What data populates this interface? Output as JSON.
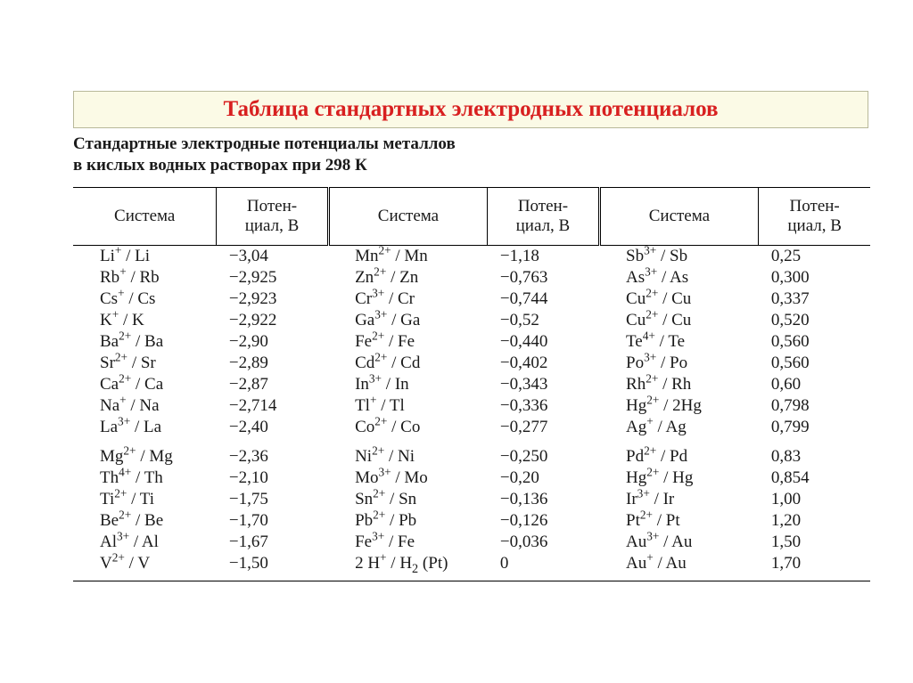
{
  "title": "Таблица стандартных электродных потенциалов",
  "subtitle_line1": "Стандартные электродные потенциалы металлов",
  "subtitle_line2": "в кислых водных растворах при 298 К",
  "headers": {
    "system": "Система",
    "potential_l1": "Потен-",
    "potential_l2": "циал, В"
  },
  "colors": {
    "title_fg": "#d82020",
    "title_bg": "#fbfae6",
    "title_border": "#b8b89a",
    "text": "#1a1a1a",
    "rule": "#000000",
    "page_bg": "#ffffff"
  },
  "font": {
    "family": "Times New Roman",
    "body_pt": 14,
    "title_pt": 19
  },
  "rows": [
    {
      "s1_html": "Li<sup>+</sup> / Li",
      "p1": "−3,04",
      "s2_html": "Mn<sup>2+</sup> / Mn",
      "p2": "−1,18",
      "s3_html": "Sb<sup>3+</sup> / Sb",
      "p3": "0,25"
    },
    {
      "s1_html": "Rb<sup>+</sup> / Rb",
      "p1": "−2,925",
      "s2_html": "Zn<sup>2+</sup> / Zn",
      "p2": "−0,763",
      "s3_html": "As<sup>3+</sup> / As",
      "p3": "0,300"
    },
    {
      "s1_html": "Cs<sup>+</sup> / Cs",
      "p1": "−2,923",
      "s2_html": "Cr<sup>3+</sup> / Cr",
      "p2": "−0,744",
      "s3_html": "Cu<sup>2+</sup> / Cu",
      "p3": "0,337"
    },
    {
      "s1_html": "K<sup>+</sup> / K",
      "p1": "−2,922",
      "s2_html": "Ga<sup>3+</sup> / Ga",
      "p2": "−0,52",
      "s3_html": "Cu<sup>2+</sup> / Cu",
      "p3": "0,520"
    },
    {
      "s1_html": "Ba<sup>2+</sup> / Ba",
      "p1": "−2,90",
      "s2_html": "Fe<sup>2+</sup> / Fe",
      "p2": "−0,440",
      "s3_html": "Te<sup>4+</sup> / Te",
      "p3": "0,560"
    },
    {
      "s1_html": "Sr<sup>2+</sup> / Sr",
      "p1": "−2,89",
      "s2_html": "Cd<sup>2+</sup> / Cd",
      "p2": "−0,402",
      "s3_html": "Po<sup>3+</sup> / Po",
      "p3": "0,560"
    },
    {
      "s1_html": "Ca<sup>2+</sup> / Ca",
      "p1": "−2,87",
      "s2_html": "In<sup>3+</sup> / In",
      "p2": "−0,343",
      "s3_html": "Rh<sup>2+</sup> / Rh",
      "p3": "0,60"
    },
    {
      "s1_html": "Na<sup>+</sup> / Na",
      "p1": "−2,714",
      "s2_html": "Tl<sup>+</sup> / Tl",
      "p2": "−0,336",
      "s3_html": "Hg<sup>2+</sup> / 2Hg",
      "p3": "0,798"
    },
    {
      "s1_html": "La<sup>3+</sup> / La",
      "p1": "−2,40",
      "s2_html": "Co<sup>2+</sup> / Co",
      "p2": "−0,277",
      "s3_html": "Ag<sup>+</sup> / Ag",
      "p3": "0,799"
    },
    {
      "gap": true,
      "s1_html": "Mg<sup>2+</sup> / Mg",
      "p1": "−2,36",
      "s2_html": "Ni<sup>2+</sup> / Ni",
      "p2": "−0,250",
      "s3_html": "Pd<sup>2+</sup> / Pd",
      "p3": "0,83"
    },
    {
      "s1_html": "Th<sup>4+</sup> / Th",
      "p1": "−2,10",
      "s2_html": "Mo<sup>3+</sup> / Mo",
      "p2": "−0,20",
      "s3_html": "Hg<sup>2+</sup> / Hg",
      "p3": "0,854"
    },
    {
      "s1_html": "Ti<sup>2+</sup> / Ti",
      "p1": "−1,75",
      "s2_html": "Sn<sup>2+</sup> / Sn",
      "p2": "−0,136",
      "s3_html": "Ir<sup>3+</sup> / Ir",
      "p3": "1,00"
    },
    {
      "s1_html": "Be<sup>2+</sup> / Be",
      "p1": "−1,70",
      "s2_html": "Pb<sup>2+</sup> / Pb",
      "p2": "−0,126",
      "s3_html": "Pt<sup>2+</sup> / Pt",
      "p3": "1,20"
    },
    {
      "s1_html": "Al<sup>3+</sup> / Al",
      "p1": "−1,67",
      "s2_html": "Fe<sup>3+</sup> / Fe",
      "p2": "−0,036",
      "s3_html": "Au<sup>3+</sup> / Au",
      "p3": "1,50"
    },
    {
      "s1_html": "V<sup>2+</sup> / V",
      "p1": "−1,50",
      "s2_html": "2 H<sup>+</sup> / H<sub>2</sub> (Pt)",
      "p2": "0",
      "s3_html": "Au<sup>+</sup> / Au",
      "p3": "1,70"
    }
  ]
}
